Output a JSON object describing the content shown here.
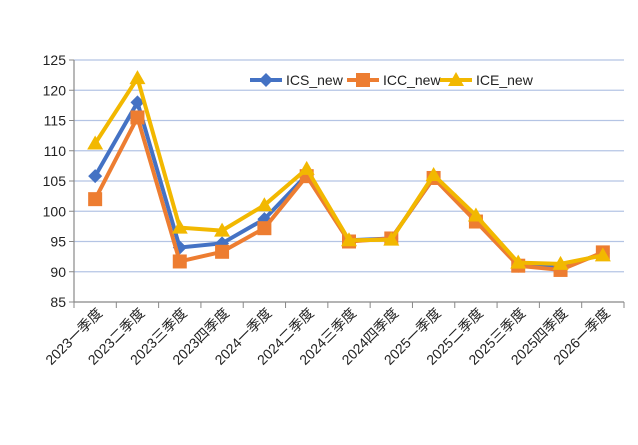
{
  "chart_data": {
    "type": "line",
    "title": "",
    "xlabel": "",
    "ylabel": "",
    "ylim": [
      85,
      125
    ],
    "yticks": [
      85,
      90,
      95,
      100,
      105,
      110,
      115,
      120,
      125
    ],
    "grid": true,
    "legend_position": "top-right",
    "categories": [
      "2023一季度",
      "2023二季度",
      "2023三季度",
      "2023四季度",
      "2024一季度",
      "2024二季度",
      "2024三季度",
      "2024四季度",
      "2025一季度",
      "2025二季度",
      "2025三季度",
      "2025四季度",
      "2026一季度"
    ],
    "series": [
      {
        "name": "ICS_new",
        "color": "#4472C4",
        "marker": "diamond",
        "values": [
          105.8,
          118.0,
          94.0,
          94.7,
          98.7,
          106.0,
          95.2,
          95.5,
          105.5,
          98.8,
          91.0,
          90.7,
          93.0
        ]
      },
      {
        "name": "ICC_new",
        "color": "#ED7D31",
        "marker": "square",
        "values": [
          102.0,
          115.5,
          91.7,
          93.3,
          97.2,
          105.8,
          95.0,
          95.5,
          105.5,
          98.3,
          91.0,
          90.3,
          93.2
        ]
      },
      {
        "name": "ICE_new",
        "color": "#F2B800",
        "marker": "triangle",
        "values": [
          111.2,
          122.0,
          97.3,
          96.8,
          101.0,
          107.0,
          95.2,
          95.3,
          106.0,
          99.3,
          91.5,
          91.3,
          92.7
        ]
      }
    ]
  }
}
